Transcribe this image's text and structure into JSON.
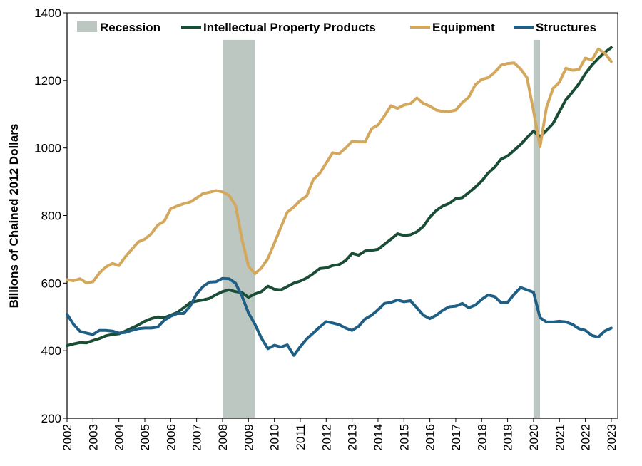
{
  "chart_data": {
    "type": "line",
    "ylabel": "Billions of Chained 2012 Dollars",
    "xlabel": "",
    "ylim": [
      200,
      1400
    ],
    "yticks": [
      200,
      400,
      600,
      800,
      1000,
      1200,
      1400
    ],
    "xlim": [
      2002.0,
      2023.25
    ],
    "xticks": [
      "2002",
      "2003",
      "2004",
      "2005",
      "2006",
      "2007",
      "2008",
      "2009",
      "2010",
      "2011",
      "2012",
      "2013",
      "2014",
      "2015",
      "2016",
      "2017",
      "2018",
      "2019",
      "2020",
      "2021",
      "2022",
      "2023"
    ],
    "legend_position": "top",
    "recession_label": "Recession",
    "recession_color": "#bcc7c2",
    "recessions": [
      [
        2008.0,
        2009.25
      ],
      [
        2020.0,
        2020.25
      ]
    ],
    "quarter_start": [
      2002,
      1
    ],
    "series": [
      {
        "name": "Intellectual Property Products",
        "color": "#1a4d36",
        "values": [
          415,
          420,
          424,
          423,
          430,
          436,
          444,
          448,
          450,
          458,
          467,
          476,
          487,
          495,
          500,
          498,
          505,
          513,
          527,
          542,
          547,
          550,
          555,
          566,
          575,
          580,
          575,
          572,
          558,
          568,
          575,
          591,
          582,
          580,
          590,
          600,
          606,
          615,
          628,
          643,
          645,
          652,
          655,
          667,
          688,
          683,
          695,
          697,
          700,
          715,
          730,
          746,
          741,
          743,
          752,
          768,
          795,
          815,
          828,
          836,
          850,
          853,
          868,
          884,
          902,
          926,
          943,
          967,
          976,
          993,
          1010,
          1031,
          1050,
          1033,
          1052,
          1072,
          1108,
          1143,
          1165,
          1190,
          1220,
          1245,
          1265,
          1283,
          1297
        ]
      },
      {
        "name": "Equipment",
        "color": "#d4a85c",
        "values": [
          610,
          607,
          613,
          601,
          604,
          630,
          648,
          658,
          652,
          678,
          700,
          722,
          730,
          746,
          772,
          783,
          820,
          828,
          835,
          840,
          852,
          865,
          869,
          874,
          870,
          860,
          830,
          730,
          650,
          628,
          645,
          673,
          718,
          765,
          810,
          825,
          845,
          858,
          906,
          925,
          955,
          986,
          983,
          1000,
          1020,
          1018,
          1018,
          1057,
          1068,
          1095,
          1125,
          1117,
          1127,
          1131,
          1148,
          1132,
          1124,
          1112,
          1108,
          1108,
          1112,
          1134,
          1150,
          1187,
          1203,
          1208,
          1224,
          1245,
          1250,
          1252,
          1234,
          1208,
          1110,
          1003,
          1120,
          1176,
          1195,
          1236,
          1230,
          1232,
          1266,
          1260,
          1293,
          1280,
          1256
        ]
      },
      {
        "name": "Structures",
        "color": "#1f5f86",
        "values": [
          508,
          478,
          457,
          452,
          448,
          460,
          460,
          458,
          452,
          454,
          460,
          465,
          467,
          467,
          470,
          490,
          502,
          510,
          510,
          532,
          568,
          590,
          603,
          604,
          614,
          613,
          600,
          562,
          512,
          478,
          437,
          406,
          416,
          411,
          417,
          386,
          412,
          435,
          452,
          470,
          486,
          482,
          477,
          467,
          460,
          472,
          494,
          505,
          521,
          540,
          543,
          550,
          545,
          548,
          527,
          505,
          495,
          505,
          520,
          530,
          532,
          540,
          527,
          535,
          552,
          565,
          560,
          542,
          543,
          567,
          587,
          580,
          573,
          498,
          485,
          485,
          487,
          485,
          478,
          465,
          460,
          445,
          440,
          458,
          467
        ]
      }
    ]
  }
}
